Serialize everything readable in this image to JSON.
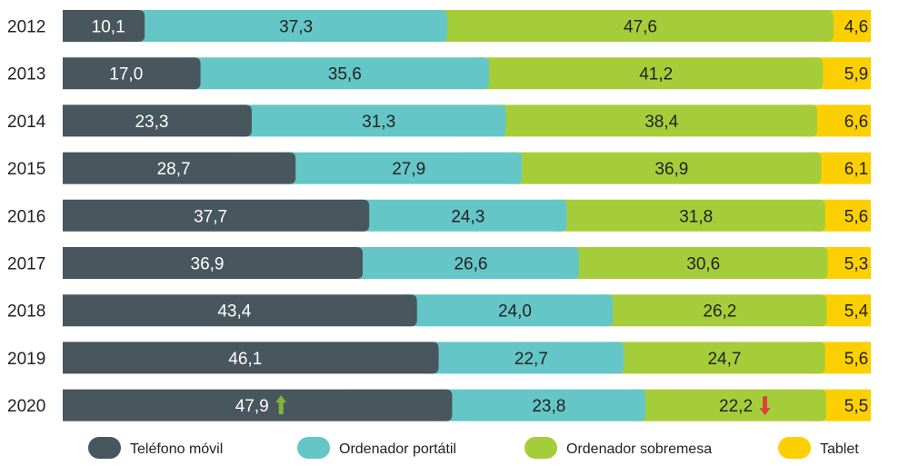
{
  "chart_data": {
    "type": "bar",
    "stacked": true,
    "normalized": true,
    "orientation": "horizontal",
    "categories": [
      "2012",
      "2013",
      "2014",
      "2015",
      "2016",
      "2017",
      "2018",
      "2019",
      "2020"
    ],
    "series": [
      {
        "name": "Teléfono móvil",
        "color": "#48565e",
        "label_color": "#ffffff",
        "values": [
          10.1,
          17.0,
          23.3,
          28.7,
          37.7,
          36.9,
          43.4,
          46.1,
          47.9
        ],
        "labels": [
          "10,1",
          "17,0",
          "23,3",
          "28,7",
          "37,7",
          "36,9",
          "43,4",
          "46,1",
          "47,9"
        ]
      },
      {
        "name": "Ordenador portátil",
        "color": "#64c6c6",
        "label_color": "#222222",
        "values": [
          37.3,
          35.6,
          31.3,
          27.9,
          24.3,
          26.6,
          24.0,
          22.7,
          23.8
        ],
        "labels": [
          "37,3",
          "35,6",
          "31,3",
          "27,9",
          "24,3",
          "26,6",
          "24,0",
          "22,7",
          "23,8"
        ]
      },
      {
        "name": "Ordenador sobremesa",
        "color": "#a5cd3a",
        "label_color": "#222222",
        "values": [
          47.6,
          41.2,
          38.4,
          36.9,
          31.8,
          30.6,
          26.2,
          24.7,
          22.2
        ],
        "labels": [
          "47,6",
          "41,2",
          "38,4",
          "36,9",
          "31,8",
          "30,6",
          "26,2",
          "24,7",
          "22,2"
        ]
      },
      {
        "name": "Tablet",
        "color": "#fcd000",
        "label_color": "#222222",
        "values": [
          4.6,
          5.9,
          6.6,
          6.1,
          5.6,
          5.3,
          5.4,
          5.6,
          5.5
        ],
        "labels": [
          "4,6",
          "5,9",
          "6,6",
          "6,1",
          "5,6",
          "5,3",
          "5,4",
          "5,6",
          "5,5"
        ]
      }
    ],
    "annotations": [
      {
        "category": "2020",
        "series": "Teléfono móvil",
        "marker": "arrow-up",
        "color": "#7fb539"
      },
      {
        "category": "2020",
        "series": "Ordenador sobremesa",
        "marker": "arrow-down",
        "color": "#d9443a"
      }
    ],
    "legend_position": "bottom",
    "grid": false
  }
}
